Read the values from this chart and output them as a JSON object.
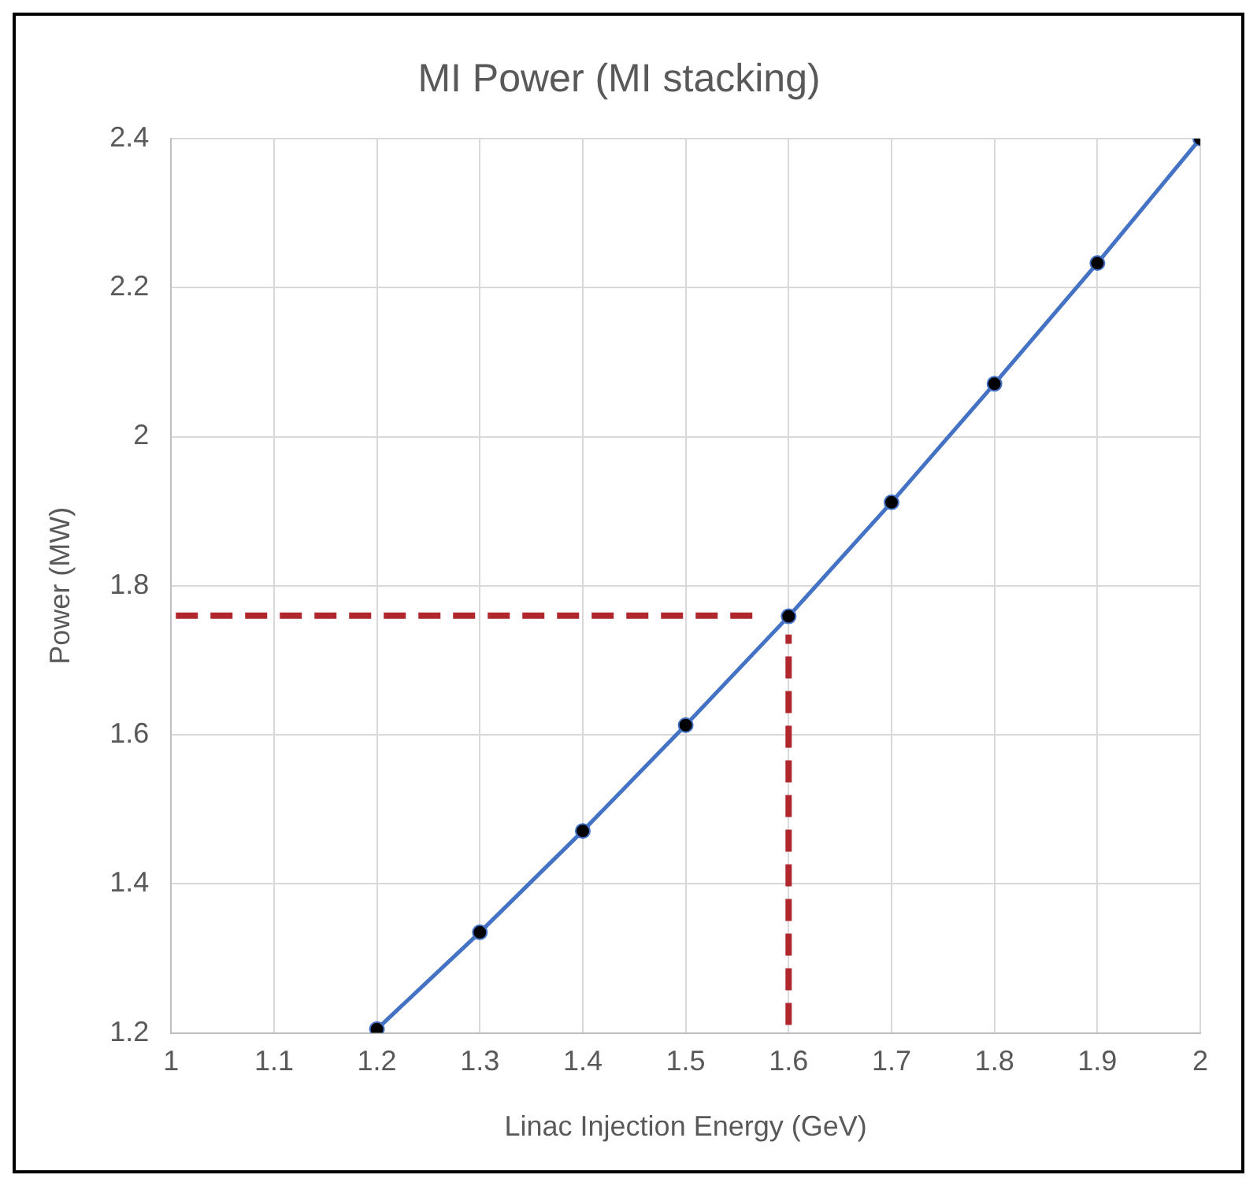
{
  "chart_data": {
    "type": "line",
    "title": "MI Power (MI stacking)",
    "xlabel": "Linac Injection Energy (GeV)",
    "ylabel": "Power (MW)",
    "x": [
      1.2,
      1.3,
      1.4,
      1.5,
      1.6,
      1.7,
      1.8,
      1.9,
      2.0
    ],
    "series": [
      {
        "color": "#4472c4",
        "values": [
          1.205,
          1.335,
          1.471,
          1.613,
          1.759,
          1.912,
          2.071,
          2.233,
          2.4
        ]
      }
    ],
    "xlim": [
      1,
      2
    ],
    "xticks": [
      1,
      1.1,
      1.2,
      1.3,
      1.4,
      1.5,
      1.6,
      1.7,
      1.8,
      1.9,
      2
    ],
    "ylim": [
      1.2,
      2.4
    ],
    "yticks": [
      1.2,
      1.4,
      1.6,
      1.8,
      2,
      2.2,
      2.4
    ],
    "ref_lines": [
      {
        "axis": "y",
        "value": 1.76,
        "color": "#b0272e",
        "line_style": "dashed"
      },
      {
        "axis": "x",
        "value": 1.6,
        "color": "#b0272e",
        "line_style": "dashed"
      }
    ],
    "grid": true,
    "legend": false,
    "marker": "circle",
    "line_style": "solid"
  }
}
